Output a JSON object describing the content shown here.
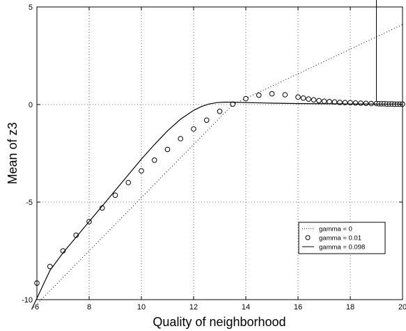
{
  "chart_data": {
    "type": "line",
    "title": "",
    "xlabel": "Quality of neighborhood",
    "ylabel": "Mean of z3",
    "xlim": [
      6,
      20
    ],
    "ylim": [
      -10,
      5
    ],
    "x_ticks": [
      "6",
      "8",
      "10",
      "12",
      "14",
      "16",
      "18",
      "20"
    ],
    "y_ticks": [
      "-10",
      "-5",
      "0",
      "5"
    ],
    "grid": true,
    "legend_position": "lower-right",
    "vertical_line_x": 19,
    "series": [
      {
        "name": "gamma = 0",
        "style": "dotted",
        "x": [
          5.8,
          13.5,
          20
        ],
        "y": [
          -10.5,
          0.0,
          4.1
        ]
      },
      {
        "name": "gamma = 0.01",
        "style": "circles",
        "x": [
          6.0,
          6.5,
          7.0,
          7.5,
          8.0,
          8.5,
          9.0,
          9.5,
          10.0,
          10.5,
          11.0,
          11.5,
          12.0,
          12.5,
          13.0,
          13.5,
          14.0,
          14.5,
          15.0,
          15.5,
          16.0,
          16.2,
          16.4,
          16.6,
          16.8,
          17.0,
          17.2,
          17.4,
          17.6,
          17.8,
          18.0,
          18.2,
          18.4,
          18.6,
          18.8,
          19.0,
          19.1,
          19.2,
          19.3,
          19.4,
          19.5,
          19.6,
          19.7,
          19.8,
          19.9,
          20.0
        ],
        "y": [
          -9.15,
          -8.3,
          -7.5,
          -6.7,
          -6.0,
          -5.3,
          -4.65,
          -4.0,
          -3.4,
          -2.85,
          -2.3,
          -1.75,
          -1.25,
          -0.8,
          -0.35,
          0.02,
          0.3,
          0.48,
          0.55,
          0.5,
          0.38,
          0.33,
          0.28,
          0.24,
          0.2,
          0.17,
          0.15,
          0.13,
          0.11,
          0.1,
          0.09,
          0.08,
          0.07,
          0.06,
          0.05,
          0.05,
          0.04,
          0.04,
          0.04,
          0.03,
          0.03,
          0.03,
          0.02,
          0.02,
          0.02,
          0.02
        ]
      },
      {
        "name": "gamma = 0.098",
        "style": "solid",
        "x": [
          5.8,
          6.5,
          7.0,
          7.5,
          8.0,
          8.5,
          9.0,
          9.5,
          10.0,
          10.5,
          11.0,
          11.5,
          12.0,
          12.3,
          12.6,
          12.9,
          13.2,
          13.5,
          14.0,
          15.0,
          16.0,
          17.0,
          18.0,
          19.0,
          20.0
        ],
        "y": [
          -10.5,
          -8.5,
          -7.6,
          -6.8,
          -6.0,
          -5.2,
          -4.4,
          -3.6,
          -2.8,
          -2.05,
          -1.35,
          -0.75,
          -0.3,
          -0.1,
          0.03,
          0.1,
          0.12,
          0.12,
          0.1,
          0.07,
          0.05,
          0.04,
          0.03,
          0.02,
          0.02
        ]
      }
    ]
  }
}
